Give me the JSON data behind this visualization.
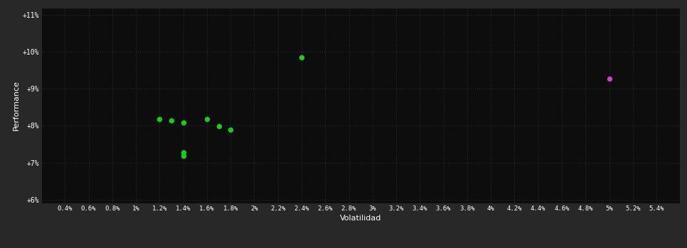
{
  "background_color": "#282828",
  "plot_bg_color": "#0d0d0d",
  "grid_color": "#2a2a2a",
  "xlabel": "Volatilidad",
  "ylabel": "Performance",
  "text_color": "#ffffff",
  "tick_color": "#ffffff",
  "xlim": [
    0.002,
    0.056
  ],
  "ylim": [
    0.059,
    0.112
  ],
  "xticks": [
    0.004,
    0.006,
    0.008,
    0.01,
    0.012,
    0.014,
    0.016,
    0.018,
    0.02,
    0.022,
    0.024,
    0.026,
    0.028,
    0.03,
    0.032,
    0.034,
    0.036,
    0.038,
    0.04,
    0.042,
    0.044,
    0.046,
    0.048,
    0.05,
    0.052,
    0.054
  ],
  "xtick_labels": [
    "0.4%",
    "0.6%",
    "0.8%",
    "1%",
    "1.2%",
    "1.4%",
    "1.6%",
    "1.8%",
    "2%",
    "2.2%",
    "2.4%",
    "2.6%",
    "2.8%",
    "3%",
    "3.2%",
    "3.4%",
    "3.6%",
    "3.8%",
    "4%",
    "4.2%",
    "4.4%",
    "4.6%",
    "4.8%",
    "5%",
    "5.2%",
    "5.4%"
  ],
  "yticks": [
    0.06,
    0.07,
    0.08,
    0.09,
    0.1,
    0.11
  ],
  "ytick_labels": [
    "+6%",
    "+7%",
    "+8%",
    "+9%",
    "+10%",
    "+11%"
  ],
  "green_points": [
    [
      0.012,
      0.0818
    ],
    [
      0.013,
      0.0815
    ],
    [
      0.014,
      0.0808
    ],
    [
      0.014,
      0.0728
    ],
    [
      0.014,
      0.0718
    ],
    [
      0.016,
      0.0818
    ],
    [
      0.017,
      0.0798
    ],
    [
      0.018,
      0.079
    ],
    [
      0.024,
      0.0985
    ]
  ],
  "magenta_points": [
    [
      0.05,
      0.0928
    ]
  ],
  "green_color": "#00dd00",
  "magenta_color": "#cc44cc",
  "marker_size": 28
}
